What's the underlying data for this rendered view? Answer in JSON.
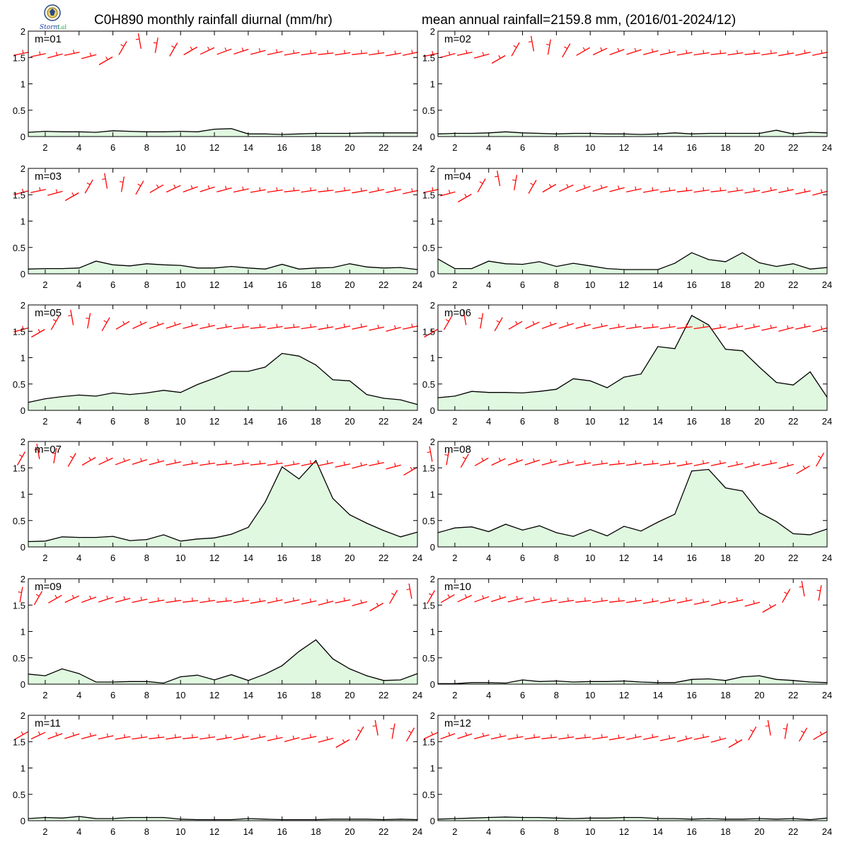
{
  "header": {
    "title_left": "C0H890 monthly rainfall diurnal (mm/hr)",
    "title_right": "mean annual rainfall=2159.8 mm, (2016/01-2024/12)",
    "logo_text": "Storm Lab"
  },
  "colors": {
    "fill": "#e0f8e0",
    "line": "#000000",
    "wind": "#ff0000"
  },
  "chart_data": [
    {
      "type": "area",
      "title": "m=01",
      "x": [
        1,
        2,
        3,
        4,
        5,
        6,
        7,
        8,
        9,
        10,
        11,
        12,
        13,
        14,
        15,
        16,
        17,
        18,
        19,
        20,
        21,
        22,
        23,
        24
      ],
      "values": [
        0.08,
        0.1,
        0.09,
        0.09,
        0.08,
        0.11,
        0.1,
        0.09,
        0.09,
        0.1,
        0.09,
        0.14,
        0.15,
        0.05,
        0.05,
        0.04,
        0.05,
        0.06,
        0.06,
        0.06,
        0.07,
        0.07,
        0.07,
        0.07
      ],
      "ylim": [
        0,
        2
      ],
      "xlim": [
        1,
        24
      ],
      "yticks": [
        0,
        0.5,
        1,
        1.5,
        2
      ],
      "yticklabels": [
        "0",
        "0.5",
        "1",
        "1.5",
        "2"
      ],
      "xticks": [
        2,
        4,
        6,
        8,
        10,
        12,
        14,
        16,
        18,
        20,
        22,
        24
      ]
    },
    {
      "type": "area",
      "title": "m=02",
      "x": [
        1,
        2,
        3,
        4,
        5,
        6,
        7,
        8,
        9,
        10,
        11,
        12,
        13,
        14,
        15,
        16,
        17,
        18,
        19,
        20,
        21,
        22,
        23,
        24
      ],
      "values": [
        0.05,
        0.06,
        0.06,
        0.07,
        0.09,
        0.07,
        0.06,
        0.05,
        0.06,
        0.06,
        0.05,
        0.05,
        0.04,
        0.05,
        0.07,
        0.05,
        0.06,
        0.06,
        0.06,
        0.06,
        0.12,
        0.05,
        0.08,
        0.07
      ],
      "ylim": [
        0,
        2
      ],
      "xlim": [
        1,
        24
      ],
      "yticks": [
        0,
        0.5,
        1,
        1.5,
        2
      ],
      "yticklabels": [
        "0",
        "0.5",
        "1",
        "1.5",
        "2"
      ],
      "xticks": [
        2,
        4,
        6,
        8,
        10,
        12,
        14,
        16,
        18,
        20,
        22,
        24
      ]
    },
    {
      "type": "area",
      "title": "m=03",
      "x": [
        1,
        2,
        3,
        4,
        5,
        6,
        7,
        8,
        9,
        10,
        11,
        12,
        13,
        14,
        15,
        16,
        17,
        18,
        19,
        20,
        21,
        22,
        23,
        24
      ],
      "values": [
        0.09,
        0.1,
        0.1,
        0.11,
        0.24,
        0.17,
        0.15,
        0.19,
        0.17,
        0.16,
        0.11,
        0.11,
        0.14,
        0.11,
        0.09,
        0.18,
        0.09,
        0.11,
        0.12,
        0.19,
        0.13,
        0.11,
        0.12,
        0.08
      ],
      "ylim": [
        0,
        2
      ],
      "xlim": [
        1,
        24
      ],
      "yticks": [
        0,
        0.5,
        1,
        1.5,
        2
      ],
      "yticklabels": [
        "0",
        "0.5",
        "1",
        "1.5",
        "2"
      ],
      "xticks": [
        2,
        4,
        6,
        8,
        10,
        12,
        14,
        16,
        18,
        20,
        22,
        24
      ]
    },
    {
      "type": "area",
      "title": "m=04",
      "x": [
        1,
        2,
        3,
        4,
        5,
        6,
        7,
        8,
        9,
        10,
        11,
        12,
        13,
        14,
        15,
        16,
        17,
        18,
        19,
        20,
        21,
        22,
        23,
        24
      ],
      "values": [
        0.28,
        0.1,
        0.1,
        0.24,
        0.19,
        0.18,
        0.23,
        0.14,
        0.2,
        0.15,
        0.1,
        0.08,
        0.08,
        0.08,
        0.2,
        0.4,
        0.27,
        0.23,
        0.4,
        0.21,
        0.14,
        0.19,
        0.09,
        0.12
      ],
      "ylim": [
        0,
        2
      ],
      "xlim": [
        1,
        24
      ],
      "yticks": [
        0,
        0.5,
        1,
        1.5,
        2
      ],
      "yticklabels": [
        "0",
        "0.5",
        "1",
        "1.5",
        "2"
      ],
      "xticks": [
        2,
        4,
        6,
        8,
        10,
        12,
        14,
        16,
        18,
        20,
        22,
        24
      ]
    },
    {
      "type": "area",
      "title": "m=05",
      "x": [
        1,
        2,
        3,
        4,
        5,
        6,
        7,
        8,
        9,
        10,
        11,
        12,
        13,
        14,
        15,
        16,
        17,
        18,
        19,
        20,
        21,
        22,
        23,
        24
      ],
      "values": [
        0.15,
        0.22,
        0.26,
        0.29,
        0.27,
        0.33,
        0.3,
        0.33,
        0.38,
        0.34,
        0.49,
        0.61,
        0.74,
        0.74,
        0.82,
        1.08,
        1.03,
        0.86,
        0.58,
        0.56,
        0.3,
        0.23,
        0.2,
        0.11
      ],
      "ylim": [
        0,
        2
      ],
      "xlim": [
        1,
        24
      ],
      "yticks": [
        0,
        0.5,
        1,
        1.5,
        2
      ],
      "yticklabels": [
        "0",
        "0.5",
        "1",
        "1.5",
        "2"
      ],
      "xticks": [
        2,
        4,
        6,
        8,
        10,
        12,
        14,
        16,
        18,
        20,
        22,
        24
      ]
    },
    {
      "type": "area",
      "title": "m=06",
      "x": [
        1,
        2,
        3,
        4,
        5,
        6,
        7,
        8,
        9,
        10,
        11,
        12,
        13,
        14,
        15,
        16,
        17,
        18,
        19,
        20,
        21,
        22,
        23,
        24
      ],
      "values": [
        0.24,
        0.27,
        0.36,
        0.34,
        0.34,
        0.33,
        0.36,
        0.4,
        0.6,
        0.56,
        0.43,
        0.63,
        0.69,
        1.21,
        1.17,
        1.8,
        1.62,
        1.16,
        1.13,
        0.82,
        0.53,
        0.48,
        0.73,
        0.25
      ],
      "ylim": [
        0,
        2
      ],
      "xlim": [
        1,
        24
      ],
      "yticks": [
        0,
        0.5,
        1,
        1.5,
        2
      ],
      "yticklabels": [
        "0",
        "0.5",
        "1",
        "1.5",
        "2"
      ],
      "xticks": [
        2,
        4,
        6,
        8,
        10,
        12,
        14,
        16,
        18,
        20,
        22,
        24
      ]
    },
    {
      "type": "area",
      "title": "m=07",
      "x": [
        1,
        2,
        3,
        4,
        5,
        6,
        7,
        8,
        9,
        10,
        11,
        12,
        13,
        14,
        15,
        16,
        17,
        18,
        19,
        20,
        21,
        22,
        23,
        24
      ],
      "values": [
        0.1,
        0.11,
        0.19,
        0.18,
        0.18,
        0.2,
        0.12,
        0.14,
        0.23,
        0.11,
        0.15,
        0.17,
        0.24,
        0.37,
        0.85,
        1.52,
        1.29,
        1.64,
        0.92,
        0.61,
        0.45,
        0.31,
        0.19,
        0.28
      ],
      "ylim": [
        0,
        2
      ],
      "xlim": [
        1,
        24
      ],
      "yticks": [
        0,
        0.5,
        1,
        1.5,
        2
      ],
      "yticklabels": [
        "0",
        "0.5",
        "1",
        "1.5",
        "2"
      ],
      "xticks": [
        2,
        4,
        6,
        8,
        10,
        12,
        14,
        16,
        18,
        20,
        22,
        24
      ]
    },
    {
      "type": "area",
      "title": "m=08",
      "x": [
        1,
        2,
        3,
        4,
        5,
        6,
        7,
        8,
        9,
        10,
        11,
        12,
        13,
        14,
        15,
        16,
        17,
        18,
        19,
        20,
        21,
        22,
        23,
        24
      ],
      "values": [
        0.27,
        0.36,
        0.38,
        0.29,
        0.43,
        0.32,
        0.4,
        0.27,
        0.2,
        0.33,
        0.21,
        0.39,
        0.3,
        0.47,
        0.62,
        1.44,
        1.47,
        1.12,
        1.06,
        0.65,
        0.48,
        0.25,
        0.23,
        0.34
      ],
      "ylim": [
        0,
        2
      ],
      "xlim": [
        1,
        24
      ],
      "yticks": [
        0,
        0.5,
        1,
        1.5,
        2
      ],
      "yticklabels": [
        "0",
        "0.5",
        "1",
        "1.5",
        "2"
      ],
      "xticks": [
        2,
        4,
        6,
        8,
        10,
        12,
        14,
        16,
        18,
        20,
        22,
        24
      ]
    },
    {
      "type": "area",
      "title": "m=09",
      "x": [
        1,
        2,
        3,
        4,
        5,
        6,
        7,
        8,
        9,
        10,
        11,
        12,
        13,
        14,
        15,
        16,
        17,
        18,
        19,
        20,
        21,
        22,
        23,
        24
      ],
      "values": [
        0.19,
        0.16,
        0.29,
        0.2,
        0.04,
        0.04,
        0.05,
        0.05,
        0.02,
        0.14,
        0.17,
        0.08,
        0.18,
        0.07,
        0.19,
        0.35,
        0.62,
        0.84,
        0.48,
        0.29,
        0.16,
        0.07,
        0.08,
        0.2
      ],
      "ylim": [
        0,
        2
      ],
      "xlim": [
        1,
        24
      ],
      "yticks": [
        0,
        0.5,
        1,
        1.5,
        2
      ],
      "yticklabels": [
        "0",
        "0.5",
        "1",
        "1.5",
        "2"
      ],
      "xticks": [
        2,
        4,
        6,
        8,
        10,
        12,
        14,
        16,
        18,
        20,
        22,
        24
      ]
    },
    {
      "type": "area",
      "title": "m=10",
      "x": [
        1,
        2,
        3,
        4,
        5,
        6,
        7,
        8,
        9,
        10,
        11,
        12,
        13,
        14,
        15,
        16,
        17,
        18,
        19,
        20,
        21,
        22,
        23,
        24
      ],
      "values": [
        0.01,
        0.01,
        0.03,
        0.03,
        0.02,
        0.08,
        0.05,
        0.06,
        0.04,
        0.05,
        0.05,
        0.06,
        0.04,
        0.03,
        0.03,
        0.09,
        0.1,
        0.07,
        0.14,
        0.16,
        0.09,
        0.07,
        0.04,
        0.03
      ],
      "ylim": [
        0,
        2
      ],
      "xlim": [
        1,
        24
      ],
      "yticks": [
        0,
        0.5,
        1,
        1.5,
        2
      ],
      "yticklabels": [
        "0",
        "0.5",
        "1",
        "1.5",
        "2"
      ],
      "xticks": [
        2,
        4,
        6,
        8,
        10,
        12,
        14,
        16,
        18,
        20,
        22,
        24
      ]
    },
    {
      "type": "area",
      "title": "m=11",
      "x": [
        1,
        2,
        3,
        4,
        5,
        6,
        7,
        8,
        9,
        10,
        11,
        12,
        13,
        14,
        15,
        16,
        17,
        18,
        19,
        20,
        21,
        22,
        23,
        24
      ],
      "values": [
        0.04,
        0.06,
        0.05,
        0.08,
        0.04,
        0.04,
        0.06,
        0.06,
        0.06,
        0.03,
        0.02,
        0.02,
        0.02,
        0.04,
        0.03,
        0.02,
        0.02,
        0.02,
        0.03,
        0.03,
        0.03,
        0.02,
        0.03,
        0.02
      ],
      "ylim": [
        0,
        2
      ],
      "xlim": [
        1,
        24
      ],
      "yticks": [
        0,
        0.5,
        1,
        1.5,
        2
      ],
      "yticklabels": [
        "0",
        "0.5",
        "1",
        "1.5",
        "2"
      ],
      "xticks": [
        2,
        4,
        6,
        8,
        10,
        12,
        14,
        16,
        18,
        20,
        22,
        24
      ]
    },
    {
      "type": "area",
      "title": "m=12",
      "x": [
        1,
        2,
        3,
        4,
        5,
        6,
        7,
        8,
        9,
        10,
        11,
        12,
        13,
        14,
        15,
        16,
        17,
        18,
        19,
        20,
        21,
        22,
        23,
        24
      ],
      "values": [
        0.03,
        0.04,
        0.05,
        0.06,
        0.07,
        0.06,
        0.06,
        0.05,
        0.04,
        0.05,
        0.05,
        0.06,
        0.06,
        0.04,
        0.04,
        0.03,
        0.04,
        0.03,
        0.03,
        0.04,
        0.03,
        0.04,
        0.02,
        0.05
      ],
      "ylim": [
        0,
        2
      ],
      "xlim": [
        1,
        24
      ],
      "yticks": [
        0,
        0.5,
        1,
        1.5,
        2
      ],
      "yticklabels": [
        "0",
        "0.5",
        "1",
        "1.5",
        "2"
      ],
      "xticks": [
        2,
        4,
        6,
        8,
        10,
        12,
        14,
        16,
        18,
        20,
        22,
        24
      ]
    }
  ]
}
